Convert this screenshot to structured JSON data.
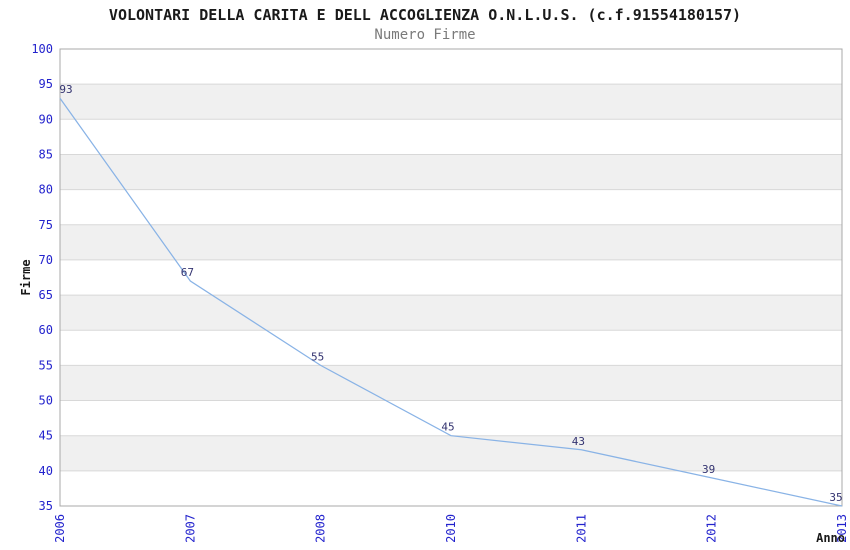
{
  "chart_data": {
    "type": "line",
    "title": "VOLONTARI DELLA CARITA E DELL ACCOGLIENZA O.N.L.U.S. (c.f.91554180157)",
    "subtitle": "Numero Firme",
    "xlabel": "Anno",
    "ylabel": "Firme",
    "categories": [
      "2006",
      "2007",
      "2008",
      "2010",
      "2011",
      "2012",
      "2013"
    ],
    "values": [
      93,
      67,
      55,
      45,
      43,
      39,
      35
    ],
    "data_labels": [
      "93",
      "67",
      "55",
      "45",
      "43",
      "39",
      "35"
    ],
    "yticks": [
      100,
      95,
      90,
      85,
      80,
      75,
      70,
      65,
      60,
      55,
      50,
      45,
      40,
      35
    ],
    "ylim": [
      35,
      100
    ],
    "ytick_step": 5,
    "grid": "horizontal",
    "band_fill": "alternating-gray-white",
    "legend": "none",
    "x_tick_rotation": -90,
    "colors": {
      "line": "#89b3e6",
      "tick_label": "#2323cd",
      "data_label": "#333370",
      "band_gray": "#f0f0f0",
      "band_white": "#ffffff",
      "gridline": "#d8d8d8",
      "plot_border": "#a8a8a8",
      "title": "#1a1a1a",
      "subtitle": "#7a7a7a",
      "axis_label": "#1a1a1a",
      "background": "#ffffff"
    }
  }
}
